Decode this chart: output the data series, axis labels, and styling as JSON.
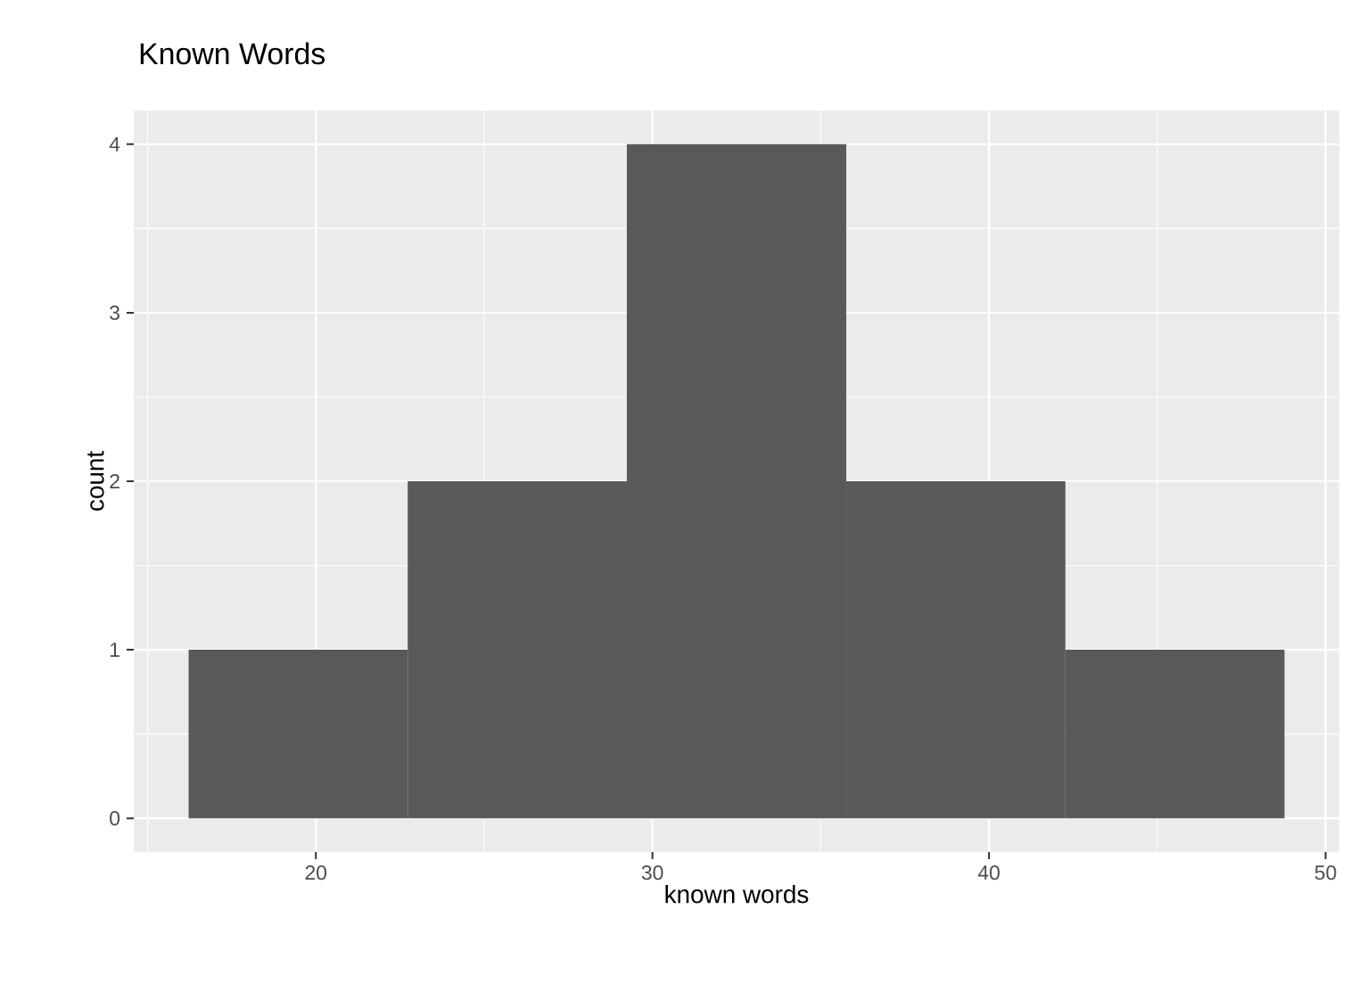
{
  "chart_data": {
    "type": "histogram",
    "title": "Known Words",
    "xlabel": "known words",
    "ylabel": "count",
    "bins": [
      16.22,
      22.73,
      29.24,
      35.76,
      42.27,
      48.78
    ],
    "values": [
      1,
      2,
      4,
      2,
      1
    ],
    "color": "#595959",
    "xlim": [
      14.59,
      50.41
    ],
    "ylim": [
      -0.2,
      4.2
    ],
    "xticks": [
      20,
      30,
      40,
      50
    ],
    "yticks": [
      0,
      1,
      2,
      3,
      4
    ],
    "grid": true
  }
}
